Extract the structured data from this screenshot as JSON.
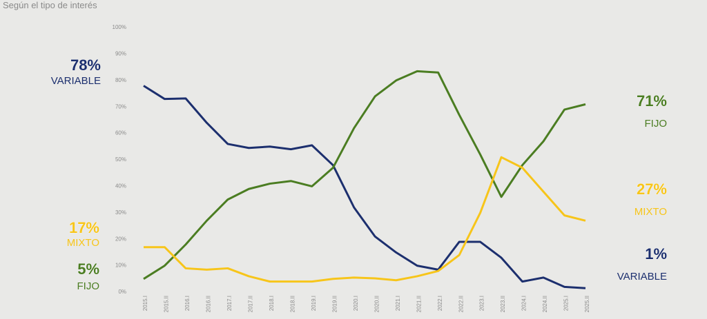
{
  "chart_data": {
    "type": "line",
    "subtitle": "Según el tipo de interés",
    "categories": [
      "2015.I",
      "2015.II",
      "2016.I",
      "2016.II",
      "2017.I",
      "2017.II",
      "2018.I",
      "2018.II",
      "2019.I",
      "2019.II",
      "2020.I",
      "2020.II",
      "2021.I",
      "2021.II",
      "2022.I",
      "2022.II",
      "2023.I",
      "2023.II",
      "2024.I",
      "2024.II",
      "2025.I",
      "2025.II"
    ],
    "series": [
      {
        "name": "VARIABLE",
        "color": "#1c2f6e",
        "start_label": "78%",
        "end_label": "1%",
        "values": [
          78,
          73,
          73.2,
          64,
          56,
          54.5,
          55,
          54,
          55.5,
          48,
          32,
          21,
          15,
          10,
          8.5,
          19,
          19,
          13,
          4,
          5.5,
          2,
          1.5
        ]
      },
      {
        "name": "FIJO",
        "color": "#4b7d22",
        "start_label": "5%",
        "end_label": "71%",
        "values": [
          5,
          10,
          18,
          27,
          35,
          39,
          41,
          42,
          40,
          47,
          62,
          74,
          80,
          83.5,
          83,
          67,
          52,
          36,
          48,
          57,
          69,
          71
        ]
      },
      {
        "name": "MIXTO",
        "color": "#f7c51a",
        "start_label": "17%",
        "end_label": "27%",
        "values": [
          17,
          17,
          9,
          8.5,
          9,
          6,
          4,
          4,
          4,
          5,
          5.5,
          5.2,
          4.5,
          6,
          8,
          14,
          30,
          51,
          47,
          38,
          29,
          27
        ]
      }
    ],
    "ylim": [
      0,
      100
    ],
    "yticks": [
      {
        "value": 0,
        "label": "0%"
      },
      {
        "value": 10,
        "label": "10%"
      },
      {
        "value": 20,
        "label": "20%"
      },
      {
        "value": 30,
        "label": "30%"
      },
      {
        "value": 40,
        "label": "40%"
      },
      {
        "value": 50,
        "label": "50%"
      },
      {
        "value": 60,
        "label": "60%"
      },
      {
        "value": 70,
        "label": "70%"
      },
      {
        "value": 80,
        "label": "80%"
      },
      {
        "value": 90,
        "label": "90%"
      },
      {
        "value": 100,
        "label": "100%"
      }
    ],
    "grid": false
  }
}
